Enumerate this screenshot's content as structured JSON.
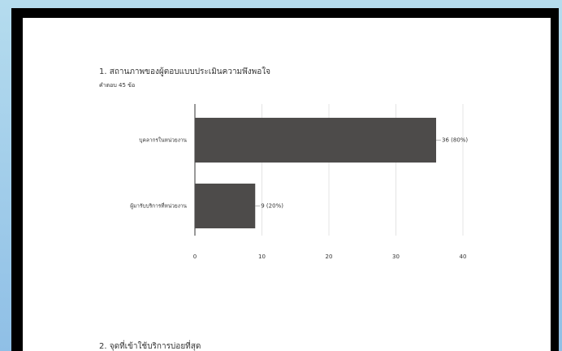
{
  "chart_data": {
    "type": "hbar",
    "title": "1. สถานภาพของผู้ตอบแบบประเมินความพึงพอใจ",
    "subtitle": "คำตอบ 45 ข้อ",
    "categories": [
      "บุคลากรในหน่วยงาน",
      "ผู้มารับบริการที่หน่วยงาน"
    ],
    "values": [
      36,
      9
    ],
    "value_labels": [
      "36 (80%)",
      "9 (20%)"
    ],
    "color": "#4d4b4a",
    "xlim": [
      0,
      40
    ],
    "xticks": [
      0,
      10,
      20,
      30,
      40
    ],
    "grid": true
  },
  "next_question": "2. จุดที่เข้าใช้บริการบ่อยที่สุด"
}
